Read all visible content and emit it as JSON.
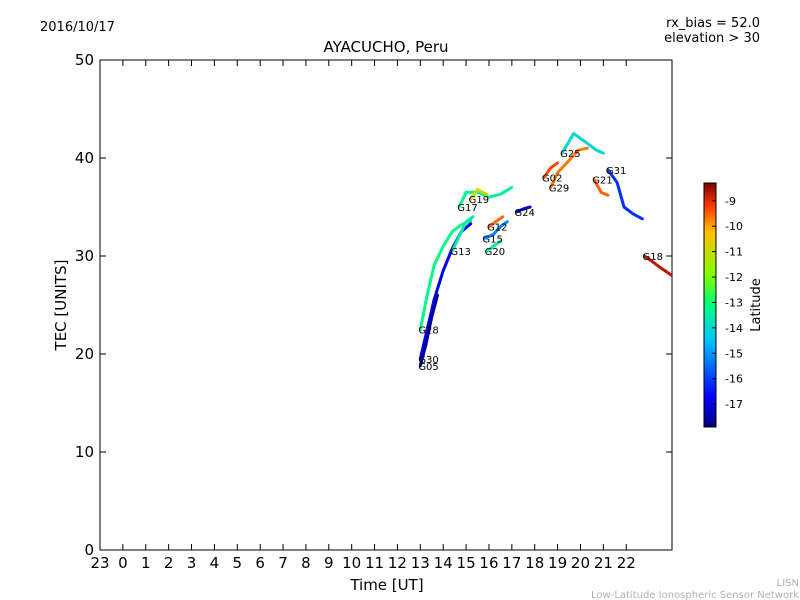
{
  "header": {
    "date": "2016/10/17",
    "rx_bias": "rx_bias = 52.0",
    "elevation": "elevation > 30"
  },
  "footer": {
    "lisn": "LISN",
    "network": "Low-Latitude Ionospheric Sensor Network"
  },
  "chart_data": {
    "type": "scatter",
    "title": "AYACUCHO, Peru",
    "xlabel": "Time [UT]",
    "ylabel": "TEC [UNITS]",
    "ylim": [
      0,
      50
    ],
    "xlim": [
      0,
      25
    ],
    "x_tick_labels": [
      "23",
      "0",
      "1",
      "2",
      "3",
      "4",
      "5",
      "6",
      "7",
      "8",
      "9",
      "10",
      "11",
      "12",
      "13",
      "14",
      "15",
      "16",
      "17",
      "18",
      "19",
      "20",
      "21",
      "22"
    ],
    "y_ticks": [
      0,
      10,
      20,
      30,
      40,
      50
    ],
    "grid": false,
    "colorbar": {
      "label": "Latitude",
      "range": [
        -17.9,
        -8.3
      ],
      "ticks": [
        -9,
        -10,
        -11,
        -12,
        -13,
        -14,
        -15,
        -16,
        -17
      ]
    },
    "series": [
      {
        "name": "G28",
        "lat": -13.2,
        "points": [
          [
            14.0,
            22.5
          ],
          [
            14.3,
            26.0
          ],
          [
            14.6,
            29.0
          ],
          [
            15.0,
            31.0
          ],
          [
            15.4,
            32.5
          ],
          [
            15.8,
            33.2
          ],
          [
            16.2,
            33.6
          ]
        ]
      },
      {
        "name": "G30",
        "lat": -16.8,
        "points": [
          [
            14.0,
            19.5
          ],
          [
            14.3,
            22.5
          ],
          [
            14.6,
            25.5
          ],
          [
            15.0,
            28.5
          ],
          [
            15.4,
            30.8
          ],
          [
            15.8,
            32.5
          ],
          [
            16.2,
            33.3
          ]
        ]
      },
      {
        "name": "G05",
        "lat": -17.6,
        "points": [
          [
            14.0,
            18.8
          ],
          [
            14.25,
            21.0
          ],
          [
            14.5,
            23.8
          ],
          [
            14.75,
            26.0
          ]
        ]
      },
      {
        "name": "G13",
        "lat": -13.5,
        "points": [
          [
            15.4,
            30.5
          ],
          [
            15.7,
            32.0
          ],
          [
            16.0,
            33.5
          ],
          [
            16.3,
            34.0
          ]
        ]
      },
      {
        "name": "G17",
        "lat": -13.3,
        "points": [
          [
            15.7,
            35.0
          ],
          [
            16.0,
            36.5
          ],
          [
            16.5,
            36.5
          ],
          [
            17.0,
            36.0
          ],
          [
            17.5,
            36.3
          ],
          [
            18.0,
            37.0
          ]
        ]
      },
      {
        "name": "G19",
        "lat": -10.8,
        "points": [
          [
            16.2,
            35.8
          ],
          [
            16.5,
            36.8
          ],
          [
            16.9,
            36.3
          ]
        ]
      },
      {
        "name": "G15",
        "lat": -15.2,
        "points": [
          [
            16.8,
            31.8
          ],
          [
            17.2,
            32.2
          ],
          [
            17.5,
            33.0
          ],
          [
            17.8,
            33.5
          ]
        ]
      },
      {
        "name": "G12",
        "lat": -9.6,
        "points": [
          [
            17.0,
            33.0
          ],
          [
            17.3,
            33.5
          ],
          [
            17.6,
            34.0
          ]
        ]
      },
      {
        "name": "G20",
        "lat": -13.6,
        "points": [
          [
            16.9,
            30.5
          ],
          [
            17.2,
            31.0
          ],
          [
            17.5,
            31.5
          ]
        ]
      },
      {
        "name": "G24",
        "lat": -17.2,
        "points": [
          [
            18.2,
            34.5
          ],
          [
            18.5,
            34.8
          ],
          [
            18.8,
            35.0
          ]
        ]
      },
      {
        "name": "G02",
        "lat": -9.3,
        "points": [
          [
            19.4,
            38.0
          ],
          [
            19.7,
            39.0
          ],
          [
            20.0,
            39.5
          ]
        ]
      },
      {
        "name": "G29",
        "lat": -9.7,
        "points": [
          [
            19.7,
            37.0
          ],
          [
            20.0,
            38.5
          ],
          [
            20.4,
            39.5
          ],
          [
            20.9,
            40.8
          ],
          [
            21.3,
            41.0
          ]
        ]
      },
      {
        "name": "G25",
        "lat": -14.0,
        "points": [
          [
            20.2,
            40.5
          ],
          [
            20.7,
            42.5
          ],
          [
            21.3,
            41.5
          ],
          [
            21.7,
            40.8
          ],
          [
            22.0,
            40.5
          ]
        ]
      },
      {
        "name": "G21",
        "lat": -9.5,
        "points": [
          [
            21.6,
            37.8
          ],
          [
            21.9,
            36.5
          ],
          [
            22.2,
            36.2
          ]
        ]
      },
      {
        "name": "G31",
        "lat": -16.2,
        "points": [
          [
            22.2,
            38.8
          ],
          [
            22.6,
            37.5
          ],
          [
            22.9,
            35.0
          ],
          [
            23.3,
            34.3
          ],
          [
            23.7,
            33.8
          ]
        ]
      },
      {
        "name": "G18",
        "lat": -8.7,
        "points": [
          [
            23.8,
            30.0
          ],
          [
            24.1,
            29.5
          ],
          [
            24.5,
            28.8
          ],
          [
            25.0,
            28.0
          ]
        ]
      }
    ]
  }
}
